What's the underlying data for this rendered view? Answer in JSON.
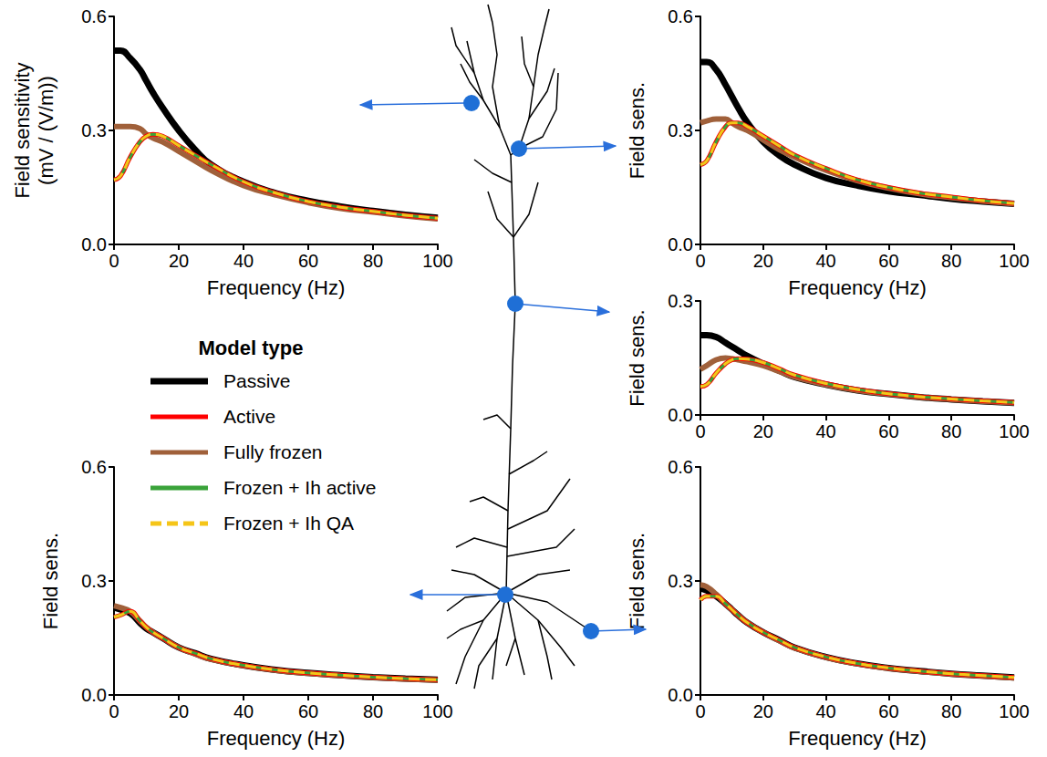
{
  "chart_data": [
    {
      "type": "line",
      "x_label": "Frequency (Hz)",
      "y_label": "Field sensitivity (mV / (V/m))",
      "legend_title": "Model type",
      "legend": "left",
      "xlim": [
        0,
        100
      ],
      "xticks": [
        0,
        20,
        40,
        60,
        80,
        100
      ],
      "ylim": [
        0,
        0.6
      ],
      "yticks": [
        {
          "value": 0,
          "label": "0.0"
        },
        {
          "value": 0.3,
          "label": "0.3"
        },
        {
          "value": 0.6,
          "label": "0.6"
        }
      ],
      "x": [
        0,
        2,
        5,
        8,
        10,
        12,
        15,
        20,
        25,
        30,
        40,
        50,
        60,
        70,
        80,
        90,
        100
      ],
      "series": [
        {
          "name": "Passive",
          "color": "#000000",
          "line_style": "solid",
          "values": [
            0.51,
            0.51,
            0.49,
            0.46,
            0.43,
            0.4,
            0.36,
            0.3,
            0.25,
            0.21,
            0.165,
            0.135,
            0.115,
            0.1,
            0.088,
            0.078,
            0.07
          ]
        },
        {
          "name": "Active",
          "color": "#ff0000",
          "line_style": "solid",
          "values": [
            0.17,
            0.18,
            0.23,
            0.27,
            0.285,
            0.29,
            0.285,
            0.26,
            0.235,
            0.21,
            0.165,
            0.135,
            0.113,
            0.098,
            0.087,
            0.077,
            0.069
          ]
        },
        {
          "name": "Fully frozen",
          "color": "#a0603a",
          "line_style": "solid",
          "values": [
            0.31,
            0.31,
            0.31,
            0.305,
            0.29,
            0.28,
            0.27,
            0.245,
            0.22,
            0.195,
            0.155,
            0.13,
            0.11,
            0.095,
            0.085,
            0.075,
            0.067
          ]
        },
        {
          "name": "Frozen + Ih active",
          "color": "#3aa33a",
          "line_style": "solid",
          "values": [
            0.17,
            0.18,
            0.23,
            0.27,
            0.285,
            0.29,
            0.285,
            0.26,
            0.235,
            0.21,
            0.165,
            0.135,
            0.113,
            0.098,
            0.087,
            0.077,
            0.069
          ]
        },
        {
          "name": "Frozen + Ih QA",
          "color": "#f5c518",
          "line_style": "dashed",
          "values": [
            0.17,
            0.18,
            0.23,
            0.27,
            0.285,
            0.29,
            0.285,
            0.26,
            0.235,
            0.21,
            0.165,
            0.135,
            0.113,
            0.098,
            0.087,
            0.077,
            0.069
          ]
        }
      ]
    },
    {
      "type": "line",
      "x_label": "Frequency (Hz)",
      "y_label": "Field sens.",
      "xlim": [
        0,
        100
      ],
      "xticks": [
        0,
        20,
        40,
        60,
        80,
        100
      ],
      "ylim": [
        0,
        0.6
      ],
      "yticks": [
        {
          "value": 0,
          "label": "0.0"
        },
        {
          "value": 0.3,
          "label": "0.3"
        },
        {
          "value": 0.6,
          "label": "0.6"
        }
      ],
      "x": [
        0,
        2,
        5,
        8,
        10,
        12,
        15,
        20,
        25,
        30,
        40,
        50,
        60,
        70,
        80,
        90,
        100
      ],
      "series": [
        {
          "name": "Passive",
          "color": "#000000",
          "line_style": "solid",
          "values": [
            0.48,
            0.48,
            0.46,
            0.42,
            0.39,
            0.36,
            0.32,
            0.27,
            0.235,
            0.21,
            0.175,
            0.155,
            0.14,
            0.13,
            0.12,
            0.113,
            0.107
          ]
        },
        {
          "name": "Active",
          "color": "#ff0000",
          "line_style": "solid",
          "values": [
            0.21,
            0.22,
            0.27,
            0.31,
            0.32,
            0.32,
            0.31,
            0.285,
            0.26,
            0.235,
            0.2,
            0.17,
            0.15,
            0.135,
            0.125,
            0.115,
            0.108
          ]
        },
        {
          "name": "Fully frozen",
          "color": "#a0603a",
          "line_style": "solid",
          "values": [
            0.32,
            0.325,
            0.33,
            0.33,
            0.32,
            0.31,
            0.3,
            0.275,
            0.25,
            0.23,
            0.195,
            0.168,
            0.148,
            0.133,
            0.123,
            0.114,
            0.107
          ]
        },
        {
          "name": "Frozen + Ih active",
          "color": "#3aa33a",
          "line_style": "solid",
          "values": [
            0.21,
            0.22,
            0.27,
            0.31,
            0.32,
            0.32,
            0.31,
            0.285,
            0.26,
            0.235,
            0.2,
            0.17,
            0.15,
            0.135,
            0.125,
            0.115,
            0.108
          ]
        },
        {
          "name": "Frozen + Ih QA",
          "color": "#f5c518",
          "line_style": "dashed",
          "values": [
            0.21,
            0.22,
            0.27,
            0.31,
            0.32,
            0.32,
            0.31,
            0.285,
            0.26,
            0.235,
            0.2,
            0.17,
            0.15,
            0.135,
            0.125,
            0.115,
            0.108
          ]
        }
      ]
    },
    {
      "type": "line",
      "y_label": "Field sens.",
      "xlim": [
        0,
        100
      ],
      "xticks": [
        0,
        20,
        40,
        60,
        80,
        100
      ],
      "ylim": [
        0,
        0.3
      ],
      "yticks": [
        {
          "value": 0,
          "label": "0.0"
        },
        {
          "value": 0.3,
          "label": "0.3"
        }
      ],
      "x": [
        0,
        2,
        5,
        8,
        10,
        12,
        15,
        20,
        25,
        30,
        40,
        50,
        60,
        70,
        80,
        90,
        100
      ],
      "series": [
        {
          "name": "Passive",
          "color": "#000000",
          "line_style": "solid",
          "values": [
            0.21,
            0.21,
            0.205,
            0.19,
            0.18,
            0.17,
            0.155,
            0.135,
            0.117,
            0.1,
            0.08,
            0.065,
            0.055,
            0.047,
            0.041,
            0.036,
            0.032
          ]
        },
        {
          "name": "Active",
          "color": "#ff0000",
          "line_style": "solid",
          "values": [
            0.075,
            0.08,
            0.11,
            0.135,
            0.145,
            0.148,
            0.147,
            0.138,
            0.122,
            0.105,
            0.083,
            0.067,
            0.056,
            0.048,
            0.042,
            0.037,
            0.033
          ]
        },
        {
          "name": "Fully frozen",
          "color": "#a0603a",
          "line_style": "solid",
          "values": [
            0.12,
            0.13,
            0.145,
            0.15,
            0.148,
            0.145,
            0.14,
            0.13,
            0.115,
            0.1,
            0.08,
            0.065,
            0.055,
            0.047,
            0.041,
            0.036,
            0.032
          ]
        },
        {
          "name": "Frozen + Ih active",
          "color": "#3aa33a",
          "line_style": "solid",
          "values": [
            0.075,
            0.08,
            0.11,
            0.135,
            0.145,
            0.148,
            0.147,
            0.138,
            0.122,
            0.105,
            0.083,
            0.067,
            0.056,
            0.048,
            0.042,
            0.037,
            0.033
          ]
        },
        {
          "name": "Frozen + Ih QA",
          "color": "#f5c518",
          "line_style": "dashed",
          "values": [
            0.075,
            0.08,
            0.11,
            0.135,
            0.145,
            0.148,
            0.147,
            0.138,
            0.122,
            0.105,
            0.083,
            0.067,
            0.056,
            0.048,
            0.042,
            0.037,
            0.033
          ]
        }
      ]
    },
    {
      "type": "line",
      "x_label": "Frequency (Hz)",
      "y_label": "Field sens.",
      "xlim": [
        0,
        100
      ],
      "xticks": [
        0,
        20,
        40,
        60,
        80,
        100
      ],
      "ylim": [
        0,
        0.6
      ],
      "yticks": [
        {
          "value": 0,
          "label": "0.0"
        },
        {
          "value": 0.3,
          "label": "0.3"
        },
        {
          "value": 0.6,
          "label": "0.6"
        }
      ],
      "x": [
        0,
        2,
        5,
        8,
        10,
        12,
        15,
        20,
        25,
        30,
        40,
        50,
        60,
        70,
        80,
        90,
        100
      ],
      "series": [
        {
          "name": "Passive",
          "color": "#000000",
          "line_style": "solid",
          "values": [
            0.23,
            0.225,
            0.215,
            0.19,
            0.175,
            0.165,
            0.15,
            0.125,
            0.11,
            0.095,
            0.078,
            0.066,
            0.058,
            0.052,
            0.047,
            0.043,
            0.04
          ]
        },
        {
          "name": "Active",
          "color": "#ff0000",
          "line_style": "solid",
          "values": [
            0.205,
            0.21,
            0.22,
            0.195,
            0.178,
            0.165,
            0.15,
            0.125,
            0.11,
            0.095,
            0.078,
            0.066,
            0.058,
            0.052,
            0.047,
            0.043,
            0.04
          ]
        },
        {
          "name": "Fully frozen",
          "color": "#a0603a",
          "line_style": "solid",
          "values": [
            0.235,
            0.23,
            0.22,
            0.195,
            0.178,
            0.165,
            0.15,
            0.125,
            0.108,
            0.094,
            0.077,
            0.065,
            0.057,
            0.051,
            0.046,
            0.042,
            0.039
          ]
        },
        {
          "name": "Frozen + Ih active",
          "color": "#3aa33a",
          "line_style": "solid",
          "values": [
            0.205,
            0.21,
            0.22,
            0.195,
            0.178,
            0.165,
            0.15,
            0.125,
            0.11,
            0.095,
            0.078,
            0.066,
            0.058,
            0.052,
            0.047,
            0.043,
            0.04
          ]
        },
        {
          "name": "Frozen + Ih QA",
          "color": "#f5c518",
          "line_style": "dashed",
          "values": [
            0.205,
            0.21,
            0.22,
            0.195,
            0.178,
            0.165,
            0.15,
            0.125,
            0.11,
            0.095,
            0.078,
            0.066,
            0.058,
            0.052,
            0.047,
            0.043,
            0.04
          ]
        }
      ]
    },
    {
      "type": "line",
      "x_label": "Frequency (Hz)",
      "y_label": "Field sens.",
      "xlim": [
        0,
        100
      ],
      "xticks": [
        0,
        20,
        40,
        60,
        80,
        100
      ],
      "ylim": [
        0,
        0.6
      ],
      "yticks": [
        {
          "value": 0,
          "label": "0.0"
        },
        {
          "value": 0.3,
          "label": "0.3"
        },
        {
          "value": 0.6,
          "label": "0.6"
        }
      ],
      "x": [
        0,
        2,
        5,
        8,
        10,
        12,
        15,
        20,
        25,
        30,
        40,
        50,
        60,
        70,
        80,
        90,
        100
      ],
      "series": [
        {
          "name": "Passive",
          "color": "#000000",
          "line_style": "solid",
          "values": [
            0.28,
            0.275,
            0.26,
            0.24,
            0.225,
            0.21,
            0.19,
            0.165,
            0.145,
            0.125,
            0.1,
            0.083,
            0.071,
            0.063,
            0.056,
            0.051,
            0.046
          ]
        },
        {
          "name": "Active",
          "color": "#ff0000",
          "line_style": "solid",
          "values": [
            0.25,
            0.26,
            0.26,
            0.24,
            0.225,
            0.21,
            0.19,
            0.165,
            0.145,
            0.125,
            0.1,
            0.083,
            0.071,
            0.063,
            0.056,
            0.051,
            0.046
          ]
        },
        {
          "name": "Fully frozen",
          "color": "#a0603a",
          "line_style": "solid",
          "values": [
            0.29,
            0.285,
            0.265,
            0.24,
            0.225,
            0.21,
            0.19,
            0.165,
            0.143,
            0.124,
            0.099,
            0.082,
            0.07,
            0.062,
            0.055,
            0.05,
            0.045
          ]
        },
        {
          "name": "Frozen + Ih active",
          "color": "#3aa33a",
          "line_style": "solid",
          "values": [
            0.25,
            0.26,
            0.26,
            0.24,
            0.225,
            0.21,
            0.19,
            0.165,
            0.145,
            0.125,
            0.1,
            0.083,
            0.071,
            0.063,
            0.056,
            0.051,
            0.046
          ]
        },
        {
          "name": "Frozen + Ih QA",
          "color": "#f5c518",
          "line_style": "dashed",
          "values": [
            0.25,
            0.26,
            0.26,
            0.24,
            0.225,
            0.21,
            0.19,
            0.165,
            0.145,
            0.125,
            0.1,
            0.083,
            0.071,
            0.063,
            0.056,
            0.051,
            0.046
          ]
        }
      ]
    }
  ]
}
